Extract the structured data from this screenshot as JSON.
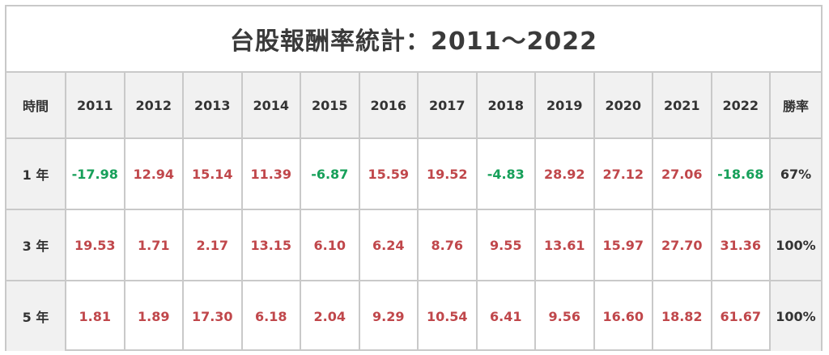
{
  "title": "台股報酬率統計：2011～2022",
  "header": {
    "label": "時間",
    "years": [
      "2011",
      "2012",
      "2013",
      "2014",
      "2015",
      "2016",
      "2017",
      "2018",
      "2019",
      "2020",
      "2021",
      "2022"
    ],
    "winrate": "勝率"
  },
  "rows": [
    {
      "label": "1 年",
      "values": [
        "-17.98",
        "12.94",
        "15.14",
        "11.39",
        "-6.87",
        "15.59",
        "19.52",
        "-4.83",
        "28.92",
        "27.12",
        "27.06",
        "-18.68"
      ],
      "winrate": "67%"
    },
    {
      "label": "3 年",
      "values": [
        "19.53",
        "1.71",
        "2.17",
        "13.15",
        "6.10",
        "6.24",
        "8.76",
        "9.55",
        "13.61",
        "15.97",
        "27.70",
        "31.36"
      ],
      "winrate": "100%"
    },
    {
      "label": "5 年",
      "values": [
        "1.81",
        "1.89",
        "17.30",
        "6.18",
        "2.04",
        "9.29",
        "10.54",
        "6.41",
        "9.56",
        "16.60",
        "18.82",
        "61.67"
      ],
      "winrate": "100%"
    }
  ],
  "colors": {
    "positive": "#c0474b",
    "negative": "#17a05a",
    "header_bg": "#f1f1f1",
    "border": "#c9c9c9"
  }
}
